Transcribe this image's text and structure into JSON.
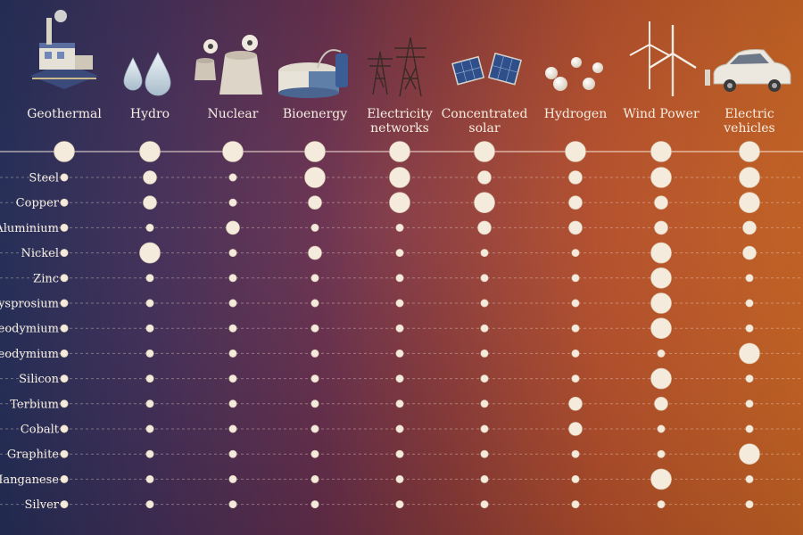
{
  "chart_data": {
    "type": "bubble-matrix",
    "columns": [
      "Geothermal",
      "Hydro",
      "Nuclear",
      "Bioenergy",
      "Electricity networks",
      "Concentrated solar",
      "Hydrogen",
      "Wind Power",
      "Electric vehicles"
    ],
    "column_label_lines": [
      [
        "Geothermal"
      ],
      [
        "Hydro"
      ],
      [
        "Nuclear"
      ],
      [
        "Bioenergy"
      ],
      [
        "Electricity",
        "networks"
      ],
      [
        "Concentrated",
        "solar"
      ],
      [
        "Hydrogen"
      ],
      [
        "Wind Power"
      ],
      [
        "Electric",
        "vehicles"
      ]
    ],
    "rows": [
      "Steel",
      "Copper",
      "Aluminium",
      "Nickel",
      "Zinc",
      "Dysprosium",
      "Neodymium",
      "Praseodymium",
      "Silicon",
      "Terbium",
      "Cobalt",
      "Graphite",
      "Manganese",
      "Silver"
    ],
    "header_values": [
      3,
      3,
      3,
      3,
      3,
      3,
      3,
      3,
      3
    ],
    "values": [
      [
        1,
        2,
        1,
        3,
        3,
        2,
        2,
        3,
        3
      ],
      [
        1,
        2,
        1,
        2,
        3,
        3,
        2,
        2,
        3
      ],
      [
        1,
        1,
        2,
        1,
        1,
        2,
        2,
        2,
        2
      ],
      [
        1,
        3,
        1,
        2,
        1,
        1,
        1,
        3,
        2
      ],
      [
        1,
        1,
        1,
        1,
        1,
        1,
        1,
        3,
        1
      ],
      [
        1,
        1,
        1,
        1,
        1,
        1,
        1,
        3,
        1
      ],
      [
        1,
        1,
        1,
        1,
        1,
        1,
        1,
        3,
        1
      ],
      [
        1,
        1,
        1,
        1,
        1,
        1,
        1,
        1,
        3
      ],
      [
        1,
        1,
        1,
        1,
        1,
        1,
        1,
        3,
        1
      ],
      [
        1,
        1,
        1,
        1,
        1,
        1,
        2,
        2,
        1
      ],
      [
        1,
        1,
        1,
        1,
        1,
        1,
        2,
        1,
        1
      ],
      [
        1,
        1,
        1,
        1,
        1,
        1,
        1,
        1,
        3
      ],
      [
        1,
        1,
        1,
        1,
        1,
        1,
        1,
        3,
        1
      ],
      [
        1,
        1,
        1,
        1,
        1,
        1,
        1,
        1,
        1
      ]
    ],
    "scale": "relative importance (1 = low, 2 = moderate, 3 = high)",
    "legend": "none",
    "grid": true
  },
  "icons": [
    "geothermal-plant-icon",
    "water-drops-icon",
    "nuclear-cooling-tower-icon",
    "bioenergy-tank-icon",
    "transmission-tower-icon",
    "solar-panel-icon",
    "hydrogen-spheres-icon",
    "wind-turbine-icon",
    "electric-car-icon"
  ],
  "colors": {
    "background_left": "#2b3668",
    "background_right": "#e8742a",
    "dot": "#f4ebdc",
    "text": "#f6eee2"
  }
}
